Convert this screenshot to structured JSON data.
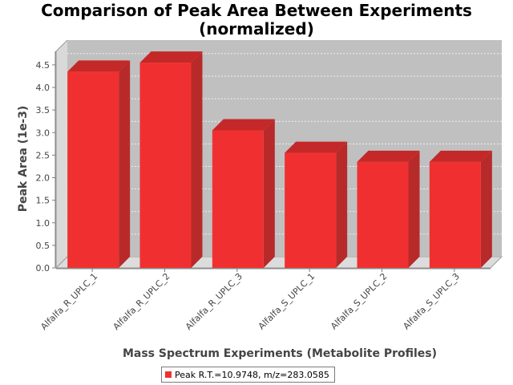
{
  "chart_data": {
    "type": "bar",
    "title_line1": "Comparison of Peak Area Between Experiments",
    "title_line2": "(normalized)",
    "xlabel": "Mass Spectrum Experiments (Metabolite Profiles)",
    "ylabel": "Peak Area (1e-3)",
    "categories": [
      "Alfalfa_R_UPLC_1",
      "Alfalfa_R_UPLC_2",
      "Alfalfa_R_UPLC_3",
      "Alfalfa_S_UPLC_1",
      "Alfalfa_S_UPLC_2",
      "Alfalfa_S_UPLC_3"
    ],
    "series": [
      {
        "name": "Peak R.T.=10.9748, m/z=283.0585",
        "values": [
          4.35,
          4.55,
          3.05,
          2.55,
          2.35,
          2.35
        ],
        "color": "#f03030"
      }
    ],
    "yticks": [
      "0.0",
      "0.5",
      "1.0",
      "1.5",
      "2.0",
      "2.5",
      "3.0",
      "3.5",
      "4.0",
      "4.5"
    ],
    "ylim": [
      0,
      4.8
    ],
    "grid": true,
    "legend_position": "bottom",
    "plot_background": "#c0c0c0"
  }
}
